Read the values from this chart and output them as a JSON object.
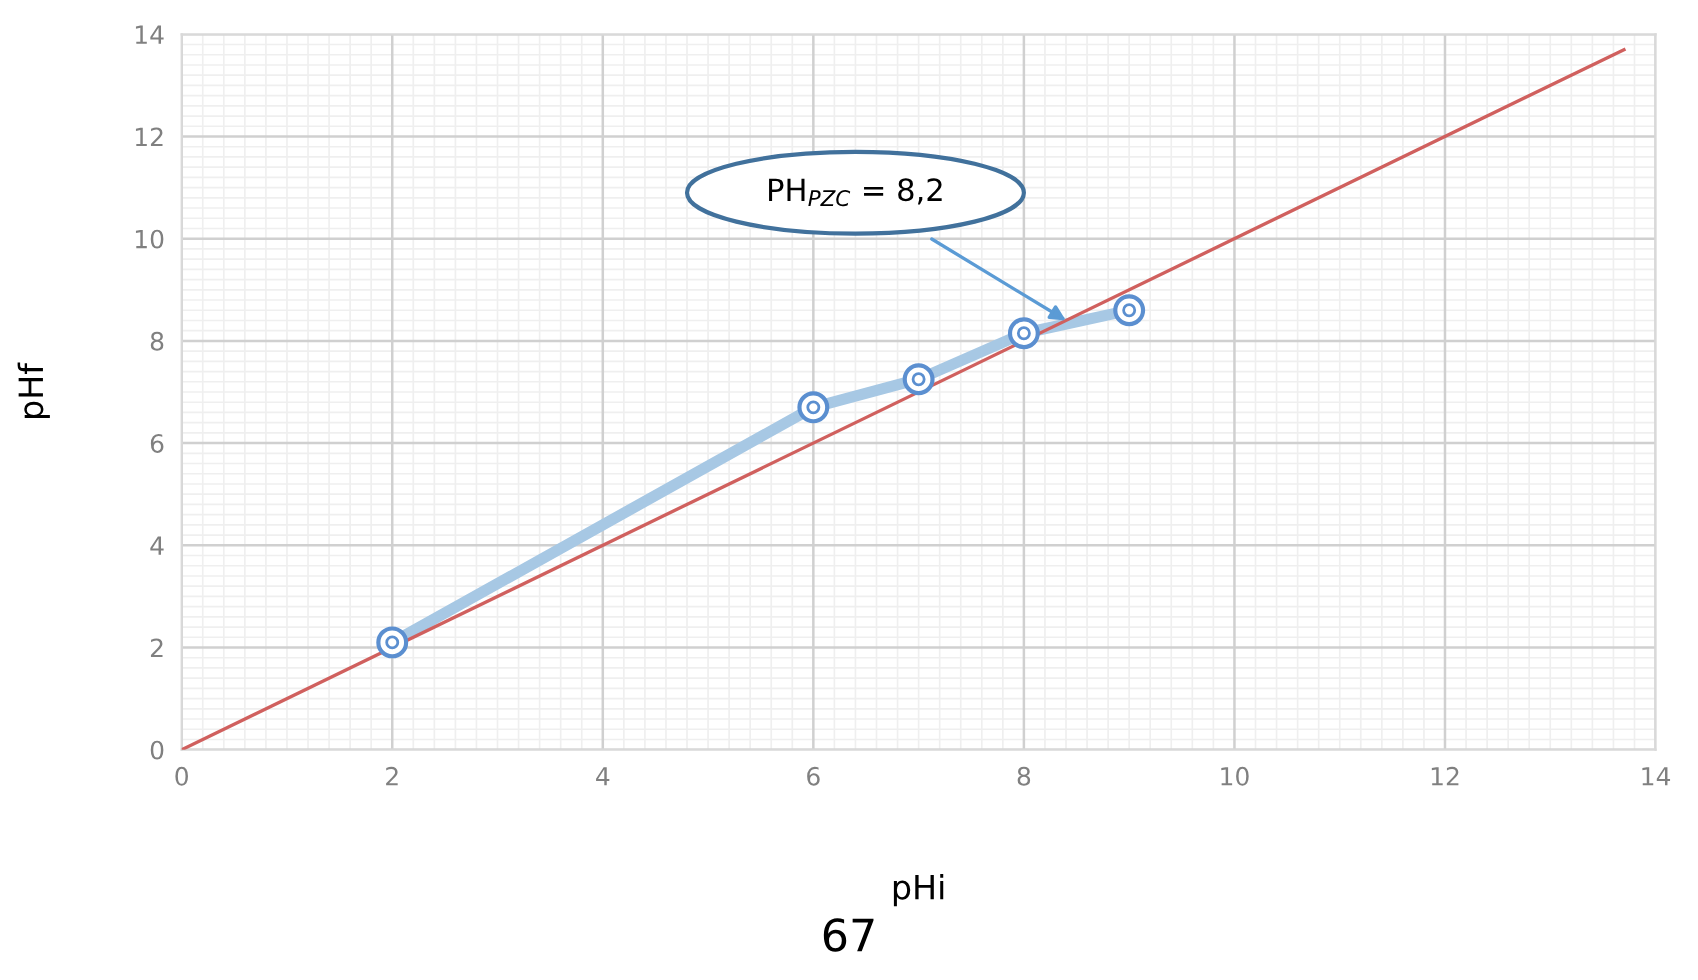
{
  "chart_data": {
    "type": "line",
    "xlabel": "pHi",
    "ylabel": "pHf",
    "xlim": [
      0,
      14
    ],
    "ylim": [
      0,
      14
    ],
    "xticks": [
      0,
      2,
      4,
      6,
      8,
      10,
      12,
      14
    ],
    "yticks": [
      0,
      2,
      4,
      6,
      8,
      10,
      12,
      14
    ],
    "grid": true,
    "series": [
      {
        "color": "#d0605e",
        "x": [
          0,
          13.7
        ],
        "values": [
          0,
          13.7
        ],
        "marker": "none"
      },
      {
        "color": "#a7c8e4",
        "x": [
          2,
          6,
          7,
          8,
          9
        ],
        "values": [
          2.1,
          6.7,
          7.25,
          8.15,
          8.6
        ],
        "marker": "circle"
      }
    ],
    "annotations": [
      {
        "text": "PH$_{PZC}$ = 8,2",
        "x": 8.4,
        "y": 8.4
      },
      "67"
    ]
  }
}
